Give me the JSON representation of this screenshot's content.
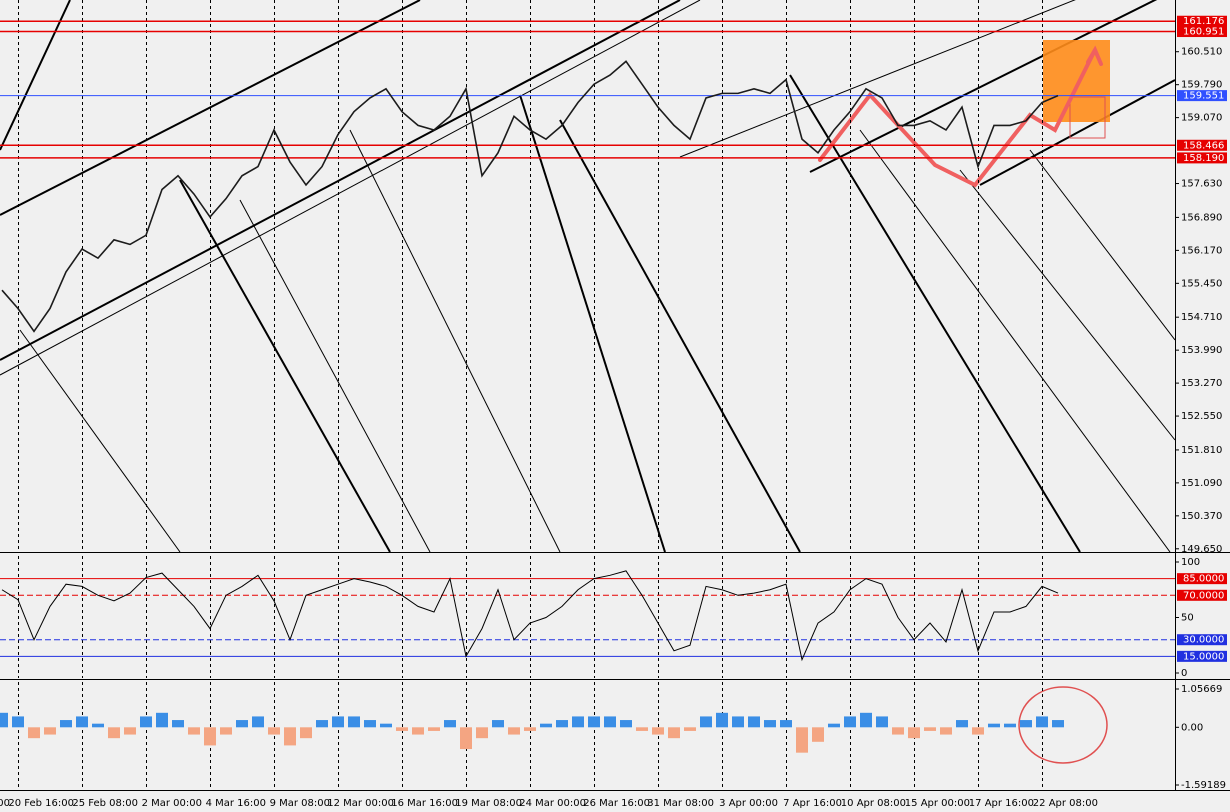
{
  "chart_data": [
    {
      "type": "line",
      "color": "#1c1c1c",
      "categories": [
        "00",
        null,
        null,
        null,
        "20 Feb 16:00",
        null,
        null,
        null,
        "25 Feb 08:00",
        null,
        null,
        null,
        "2 Mar 00:00",
        null,
        null,
        null,
        "4 Mar 16:00",
        null,
        null,
        null,
        "9 Mar 08:00",
        null,
        null,
        null,
        "12 Mar 00:00",
        null,
        null,
        null,
        "16 Mar 16:00",
        null,
        null,
        null,
        "19 Mar 08:00",
        null,
        null,
        null,
        "24 Mar 00:00",
        null,
        null,
        null,
        "26 Mar 16:00",
        null,
        null,
        null,
        "31 Mar 08:00",
        null,
        null,
        null,
        "3 Apr 00:00",
        null,
        null,
        null,
        "7 Apr 16:00",
        null,
        null,
        null,
        "10 Apr 08:00",
        null,
        null,
        null,
        "15 Apr 00:00",
        null,
        null,
        null,
        "17 Apr 16:00",
        null,
        null,
        null,
        "22 Apr 08:00",
        null
      ],
      "values": [
        null,
        null,
        null,
        155.3,
        154.9,
        154.4,
        154.9,
        155.7,
        156.2,
        156.0,
        156.4,
        156.3,
        156.5,
        157.5,
        157.8,
        157.4,
        156.9,
        157.3,
        157.8,
        158.0,
        158.8,
        158.1,
        157.6,
        158.0,
        158.7,
        159.2,
        159.5,
        159.7,
        159.2,
        158.9,
        158.8,
        159.1,
        159.7,
        157.8,
        158.3,
        159.1,
        158.8,
        158.6,
        158.9,
        159.4,
        159.8,
        160.0,
        160.3,
        159.8,
        159.3,
        158.9,
        158.6,
        159.5,
        159.6,
        159.6,
        159.7,
        159.6,
        159.9,
        158.6,
        158.3,
        158.8,
        159.2,
        159.7,
        159.5,
        158.9,
        158.9,
        159.0,
        158.8,
        159.3,
        158.0,
        158.9,
        158.9,
        159.0,
        159.4,
        159.551
      ],
      "ylim": [
        149.58,
        161.64
      ],
      "yticks": [
        {
          "value": 160.51,
          "label": "160.510"
        },
        {
          "value": 159.79,
          "label": "159.790"
        },
        {
          "value": 159.07,
          "label": "159.070"
        },
        {
          "value": 157.63,
          "label": "157.630"
        },
        {
          "value": 156.89,
          "label": "156.890"
        },
        {
          "value": 156.17,
          "label": "156.170"
        },
        {
          "value": 155.45,
          "label": "155.450"
        },
        {
          "value": 154.71,
          "label": "154.710"
        },
        {
          "value": 153.99,
          "label": "153.990"
        },
        {
          "value": 153.27,
          "label": "153.270"
        },
        {
          "value": 152.55,
          "label": "152.550"
        },
        {
          "value": 151.81,
          "label": "151.810"
        },
        {
          "value": 151.09,
          "label": "151.090"
        },
        {
          "value": 150.37,
          "label": "150.370"
        },
        {
          "value": 149.65,
          "label": "149.650"
        }
      ],
      "levels": [
        {
          "value": 161.176,
          "color": "#e60000"
        },
        {
          "value": 160.951,
          "color": "#e60000"
        },
        {
          "value": 159.551,
          "color": "#3050ff"
        },
        {
          "value": 158.466,
          "color": "#e60000"
        },
        {
          "value": 158.19,
          "label": "158.190",
          "color": "#e60000"
        }
      ],
      "xgrid": true
    },
    {
      "type": "line",
      "color": "#000000",
      "values": [
        null,
        null,
        null,
        75,
        66,
        30,
        60,
        80,
        78,
        70,
        65,
        72,
        86,
        90,
        75,
        60,
        40,
        70,
        78,
        88,
        65,
        30,
        70,
        75,
        80,
        85,
        82,
        78,
        70,
        60,
        55,
        85,
        15,
        40,
        75,
        30,
        45,
        50,
        60,
        75,
        85,
        88,
        92,
        70,
        45,
        20,
        25,
        78,
        75,
        70,
        72,
        75,
        80,
        12,
        45,
        55,
        75,
        85,
        80,
        50,
        30,
        45,
        28,
        75,
        20,
        55,
        55,
        60,
        78,
        72
      ],
      "ylim": [
        -4.5,
        105.4
      ],
      "yticks": [
        100,
        50,
        0
      ],
      "levels": [
        {
          "value": 85,
          "label": "85.0000",
          "color": "#e60000"
        },
        {
          "value": 70,
          "label": "70.0000",
          "color": "#e60000",
          "style": "dashed"
        },
        {
          "value": 30,
          "label": "30.0000",
          "color": "#2030e0",
          "style": "dashed"
        },
        {
          "value": 15,
          "label": "15.0000",
          "color": "#2030e0"
        }
      ],
      "xgrid": true
    },
    {
      "type": "bar",
      "positive_color": "#3a8ee6",
      "negative_color": "#f4a582",
      "values": [
        null,
        null,
        null,
        0.4,
        0.3,
        -0.3,
        -0.2,
        0.2,
        0.3,
        0.1,
        -0.3,
        -0.2,
        0.3,
        0.4,
        0.2,
        -0.2,
        -0.5,
        -0.2,
        0.2,
        0.3,
        -0.2,
        -0.5,
        -0.3,
        0.2,
        0.3,
        0.3,
        0.2,
        0.1,
        -0.1,
        -0.2,
        -0.1,
        0.2,
        -0.6,
        -0.3,
        0.2,
        -0.2,
        -0.1,
        0.1,
        0.2,
        0.3,
        0.3,
        0.3,
        0.2,
        -0.1,
        -0.2,
        -0.3,
        -0.1,
        0.3,
        0.4,
        0.3,
        0.3,
        0.2,
        0.2,
        -0.7,
        -0.4,
        0.1,
        0.3,
        0.4,
        0.3,
        -0.2,
        -0.3,
        -0.1,
        -0.2,
        0.2,
        -0.2,
        0.1,
        0.1,
        0.2,
        0.3,
        0.2
      ],
      "ylim": [
        -1.73,
        1.25
      ],
      "yticks": [
        1.05669,
        {
          "value": 0,
          "label": "0.00"
        },
        -1.59189
      ],
      "xgrid": true
    }
  ]
}
